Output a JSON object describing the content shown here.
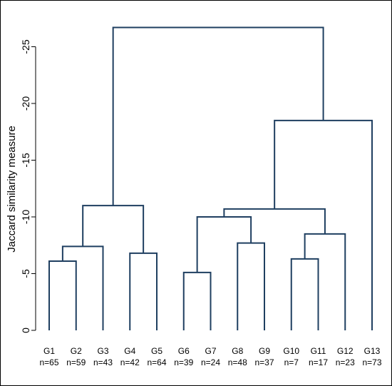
{
  "chart_data": {
    "type": "dendrogram",
    "ylabel": "Jaccard similarity measure",
    "yticks": [
      {
        "value": 0,
        "label": "0"
      },
      {
        "value": 5,
        "label": "-5"
      },
      {
        "value": 10,
        "label": "-10"
      },
      {
        "value": 15,
        "label": "-15"
      },
      {
        "value": 20,
        "label": "-20"
      },
      {
        "value": 25,
        "label": "-25"
      }
    ],
    "ylim": [
      0,
      26.5
    ],
    "leaves": [
      {
        "name": "G1",
        "n": "n=65"
      },
      {
        "name": "G2",
        "n": "n=59"
      },
      {
        "name": "G3",
        "n": "n=43"
      },
      {
        "name": "G4",
        "n": "n=42"
      },
      {
        "name": "G5",
        "n": "n=64"
      },
      {
        "name": "G6",
        "n": "n=39"
      },
      {
        "name": "G7",
        "n": "n=24"
      },
      {
        "name": "G8",
        "n": "n=48"
      },
      {
        "name": "G9",
        "n": "n=37"
      },
      {
        "name": "G10",
        "n": "n=7"
      },
      {
        "name": "G11",
        "n": "n=17"
      },
      {
        "name": "G12",
        "n": "n=23"
      },
      {
        "name": "G13",
        "n": "n=73"
      }
    ],
    "merges": [
      {
        "id": "c1",
        "left": "G1",
        "right": "G2",
        "height": 6.1
      },
      {
        "id": "c2",
        "left": "c1",
        "right": "G3",
        "height": 7.4
      },
      {
        "id": "c3",
        "left": "G4",
        "right": "G5",
        "height": 6.8
      },
      {
        "id": "c4",
        "left": "c2",
        "right": "c3",
        "height": 11.0
      },
      {
        "id": "c5",
        "left": "G6",
        "right": "G7",
        "height": 5.1
      },
      {
        "id": "c6",
        "left": "G8",
        "right": "G9",
        "height": 7.7
      },
      {
        "id": "c7",
        "left": "c5",
        "right": "c6",
        "height": 10.0
      },
      {
        "id": "c8",
        "left": "G10",
        "right": "G11",
        "height": 6.3
      },
      {
        "id": "c9",
        "left": "c8",
        "right": "G12",
        "height": 8.5
      },
      {
        "id": "c10",
        "left": "c7",
        "right": "c9",
        "height": 10.7
      },
      {
        "id": "c11",
        "left": "c10",
        "right": "G13",
        "height": 18.5
      },
      {
        "id": "c12",
        "left": "c4",
        "right": "c11",
        "height": 26.7
      }
    ]
  }
}
